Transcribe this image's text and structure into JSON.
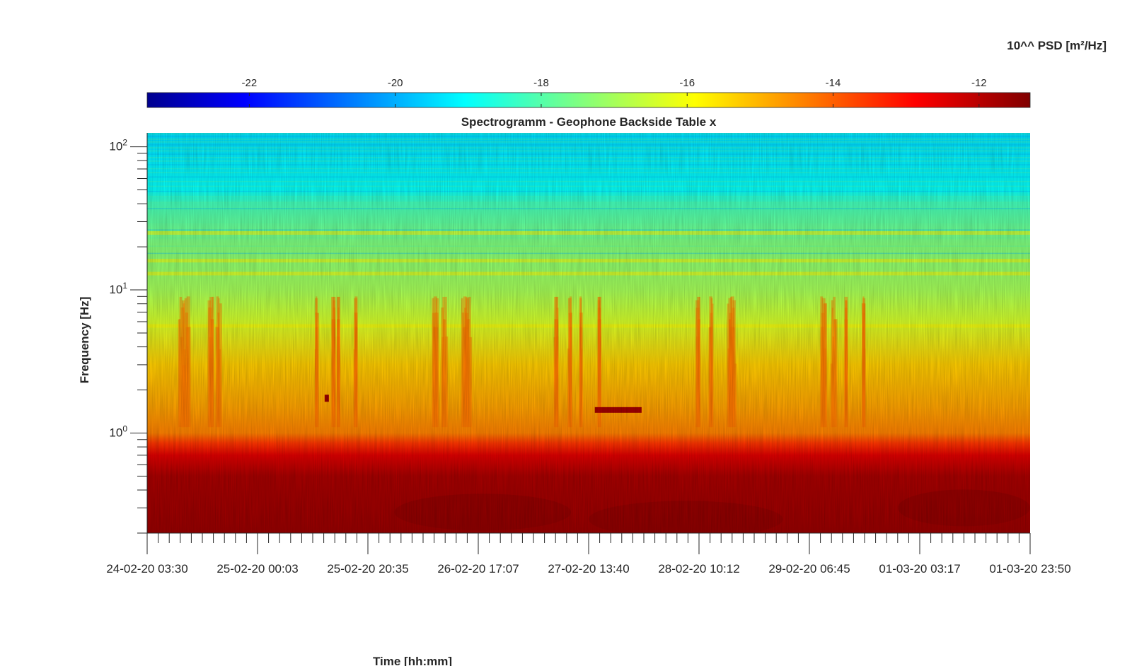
{
  "chart_data": {
    "type": "heatmap",
    "title": "Spectrogramm - Geophone Backside Table x",
    "xlabel": "Time [hh:mm]",
    "ylabel": "Frequency [Hz]",
    "y_scale": "log",
    "ylim": [
      0.2,
      125
    ],
    "x_tick_labels": [
      "24-02-20 03:30",
      "25-02-20 00:03",
      "25-02-20 20:35",
      "26-02-20 17:07",
      "27-02-20 13:40",
      "28-02-20 10:12",
      "29-02-20 06:45",
      "01-03-20 03:17",
      "01-03-20 23:50"
    ],
    "y_ticks": [
      {
        "value": 1,
        "base": "10",
        "exp": "0"
      },
      {
        "value": 10,
        "base": "10",
        "exp": "1"
      },
      {
        "value": 100,
        "base": "10",
        "exp": "2"
      }
    ],
    "colorbar": {
      "label": "10^^ PSD [m²/Hz]",
      "range": [
        -23.4,
        -11.3
      ],
      "ticks": [
        -22,
        -20,
        -18,
        -16,
        -14,
        -12
      ],
      "tick_labels": [
        "-22",
        "-20",
        "-18",
        "-16",
        "-14",
        "-12"
      ],
      "colormap": "jet",
      "location": "top"
    },
    "psd_profile": [
      {
        "freq": 0.2,
        "psd": -11.6
      },
      {
        "freq": 0.5,
        "psd": -11.8
      },
      {
        "freq": 0.7,
        "psd": -12.5
      },
      {
        "freq": 0.85,
        "psd": -13.5
      },
      {
        "freq": 1.0,
        "psd": -14.4
      },
      {
        "freq": 1.5,
        "psd": -14.8
      },
      {
        "freq": 3.0,
        "psd": -15.3
      },
      {
        "freq": 6.0,
        "psd": -16.4
      },
      {
        "freq": 10,
        "psd": -17.0
      },
      {
        "freq": 20,
        "psd": -17.4
      },
      {
        "freq": 40,
        "psd": -18.2
      },
      {
        "freq": 50,
        "psd": -19.0
      },
      {
        "freq": 125,
        "psd": -19.4
      }
    ],
    "narrowband_lines_hz": [
      5.6,
      13,
      16,
      25
    ],
    "grid": false
  }
}
